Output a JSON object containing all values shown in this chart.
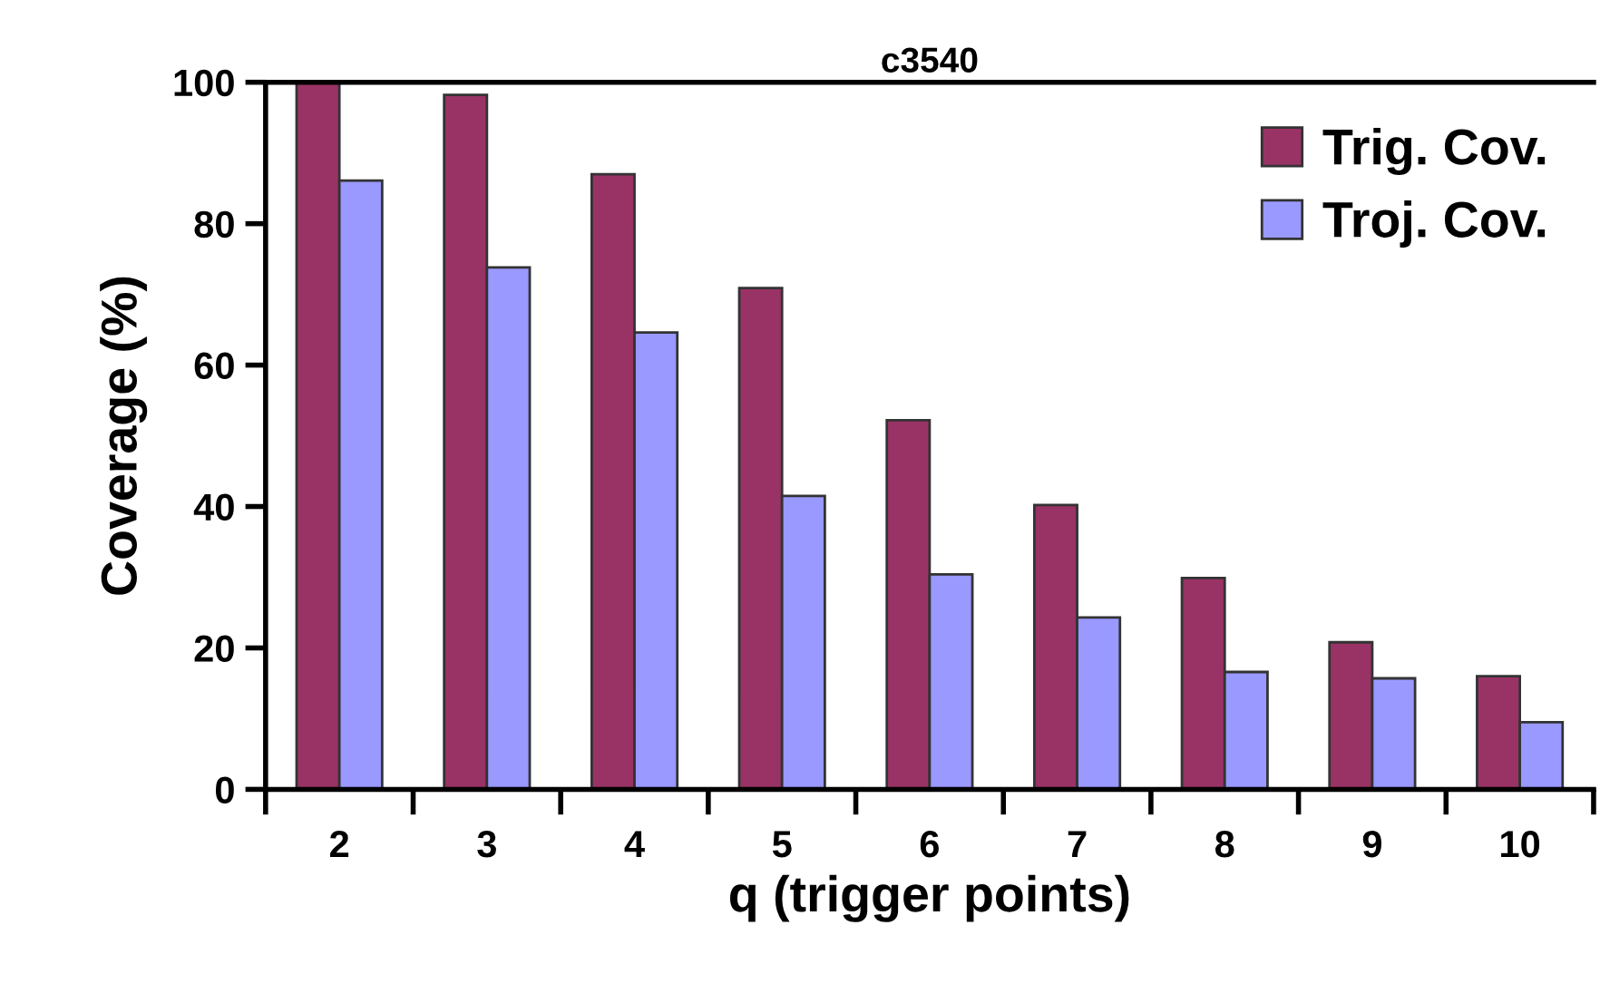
{
  "chart_data": {
    "type": "bar",
    "title": "c3540",
    "xlabel": "q (trigger points)",
    "ylabel": "Coverage (%)",
    "categories": [
      "2",
      "3",
      "4",
      "5",
      "6",
      "7",
      "8",
      "9",
      "10"
    ],
    "series": [
      {
        "name": "Trig. Cov.",
        "color": "#993366",
        "values": [
          100,
          98.2,
          87.0,
          70.9,
          52.2,
          40.2,
          29.9,
          20.8,
          16.0
        ]
      },
      {
        "name": "Troj. Cov.",
        "color": "#9999ff",
        "values": [
          86.1,
          73.8,
          64.6,
          41.5,
          30.4,
          24.3,
          16.6,
          15.7,
          9.5
        ]
      }
    ],
    "ylim": [
      0,
      100
    ],
    "yticks": [
      0,
      20,
      40,
      60,
      80,
      100
    ],
    "grid": false,
    "legend": "top right"
  }
}
